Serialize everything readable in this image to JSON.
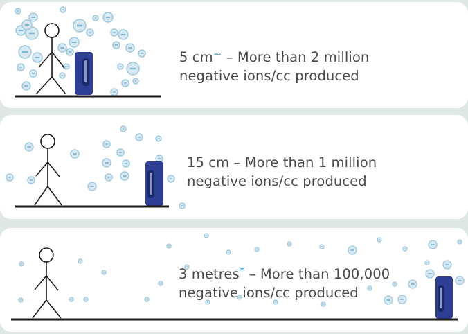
{
  "panels": [
    {
      "distance": "5 cm",
      "mark": "~",
      "line1_rest": " – More than 2 million",
      "line2": "negative ions/cc produced"
    },
    {
      "distance": "15 cm – More than 1 million",
      "mark": "",
      "line1_rest": "",
      "line2": "negative ions/cc produced"
    },
    {
      "distance": "3 metres",
      "mark": "*",
      "line1_rest": " – More than 100,000",
      "line2": "negative ions/cc produced"
    }
  ],
  "colors": {
    "background": "#dfe7e4",
    "panel": "#ffffff",
    "accent": "#2b9ad1",
    "ion_fill": "#d6e9f3",
    "ion_stroke": "#9ec8dd",
    "device": "#2c3f94",
    "ground": "#1a1a1a"
  },
  "icons": [
    "stick-figure-icon",
    "ion-generator-icon",
    "negative-ion-icon"
  ]
}
